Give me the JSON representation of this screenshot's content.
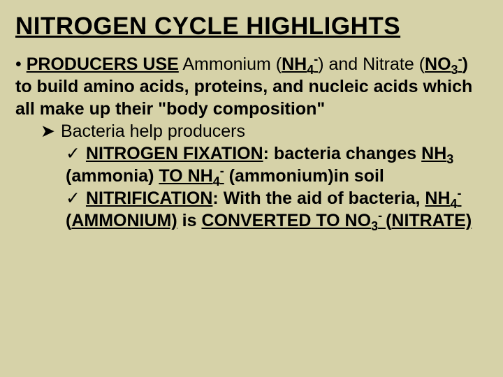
{
  "background_color": "#d6d2a8",
  "text_color": "#000000",
  "title": "NITROGEN CYCLE HIGHLIGHTS",
  "bullet_glyph": "•",
  "arrow_glyph": "➤",
  "check_glyph": "✓",
  "p1_a": "PRODUCERS USE",
  "p1_b": " Ammonium (",
  "p1_c": "NH",
  "p1_sub1": "4",
  "p1_sup1": "-",
  "p1_d": ") and Nitrate (",
  "p1_e": "NO",
  "p1_sub2": "3",
  "p1_sup2": "-",
  "p1_f": ") to build amino acids, proteins, and nucleic acids which all make up their \"body composition\"",
  "p2": " Bacteria help producers",
  "p3_a": "NITROGEN FIXATION",
  "p3_b": ": bacteria changes ",
  "p3_c": "NH",
  "p3_sub1": "3",
  "p3_d": " (ammonia) ",
  "p3_e": "TO NH",
  "p3_sub2": "4",
  "p3_sup2": "-",
  "p3_f": " (ammonium)in soil",
  "p4_a": "NITRIFICATION",
  "p4_b": ": With the aid of bacteria, ",
  "p4_c": "NH",
  "p4_sub1": "4",
  "p4_sup1": "-",
  "p4_d": " (",
  "p4_e": "AMMONIUM)",
  "p4_f": " is ",
  "p4_g": "CONVERTED TO NO",
  "p4_sub2": "3",
  "p4_sup2": "- ",
  "p4_h": "(",
  "p4_i": "NITRATE)"
}
